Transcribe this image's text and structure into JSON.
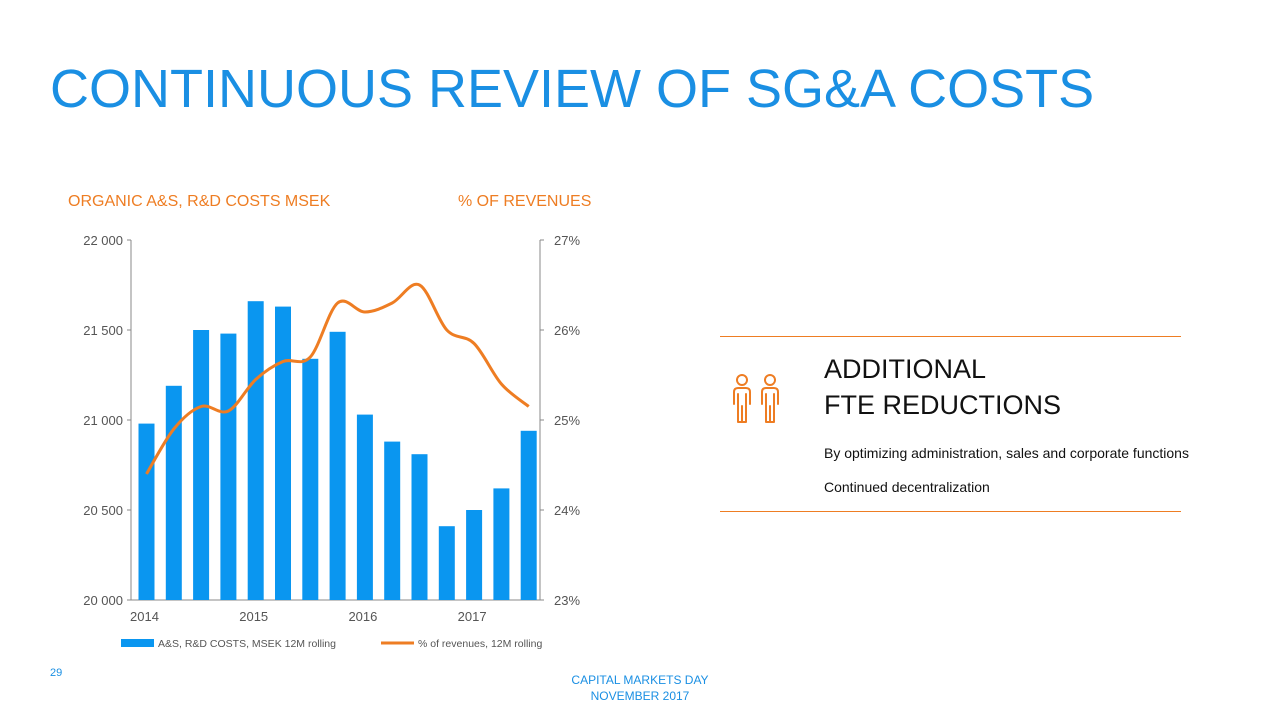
{
  "title": "CONTINUOUS REVIEW OF SG&A COSTS",
  "left_heading": "ORGANIC A&S, R&D COSTS MSEK",
  "right_heading": "% OF REVENUES",
  "callout": {
    "heading_line1": "ADDITIONAL",
    "heading_line2": "FTE REDUCTIONS",
    "bullet1": "By optimizing administration, sales and corporate functions",
    "bullet2": "Continued decentralization",
    "icon": "people-icon"
  },
  "slide_number": "29",
  "footer": {
    "line1": "CAPITAL MARKETS DAY",
    "line2": "NOVEMBER 2017"
  },
  "colors": {
    "accent_blue": "#1a8fe3",
    "bar_blue": "#0a96f0",
    "orange": "#ee7d23",
    "axis": "#555555"
  },
  "chart_data": {
    "type": "bar+line",
    "x_tick_labels": [
      "2014",
      "2015",
      "2016",
      "2017"
    ],
    "left_axis": {
      "label": "ORGANIC A&S, R&D COSTS MSEK",
      "min": 20000,
      "max": 22000,
      "ticks": [
        20000,
        20500,
        21000,
        21500,
        22000
      ],
      "tick_labels": [
        "20 000",
        "20 500",
        "21 000",
        "21 500",
        "22 000"
      ]
    },
    "right_axis": {
      "label": "% OF REVENUES",
      "min": 23,
      "max": 27,
      "ticks": [
        23,
        24,
        25,
        26,
        27
      ],
      "tick_labels": [
        "23%",
        "24%",
        "25%",
        "26%",
        "27%"
      ]
    },
    "series": [
      {
        "name": "A&S, R&D COSTS, MSEK 12M rolling",
        "type": "bar",
        "axis": "left",
        "values": [
          20980,
          21190,
          21500,
          21480,
          21660,
          21630,
          21340,
          21490,
          21030,
          20880,
          20810,
          20410,
          20500,
          20620,
          20940
        ]
      },
      {
        "name": "% of revenues, 12M rolling",
        "type": "line",
        "axis": "right",
        "values": [
          24.4,
          24.9,
          25.15,
          25.1,
          25.45,
          25.65,
          25.7,
          26.3,
          26.2,
          26.3,
          26.5,
          26.0,
          25.85,
          25.4,
          25.15
        ]
      }
    ],
    "legend": {
      "position": "bottom",
      "labels": [
        "A&S, R&D COSTS, MSEK 12M rolling",
        "% of revenues, 12M rolling"
      ]
    }
  }
}
